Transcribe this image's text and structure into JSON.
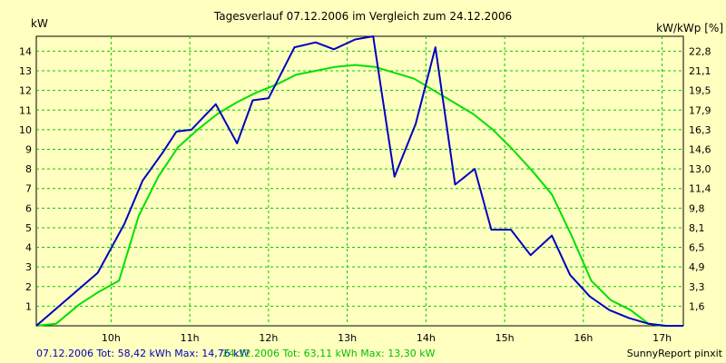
{
  "chart_data": {
    "type": "line",
    "title": "Tagesverlauf 07.12.2006 im Vergleich zum 24.12.2006",
    "left_axis_label": "kW",
    "right_axis_label": "kW/kWp [%]",
    "left_ylim": [
      0,
      14.76
    ],
    "left_ticks": [
      "1",
      "2",
      "3",
      "4",
      "5",
      "6",
      "7",
      "8",
      "9",
      "10",
      "11",
      "12",
      "13",
      "14"
    ],
    "right_ticks": [
      "1,6",
      "3,3",
      "4,9",
      "6,5",
      "8,1",
      "9,8",
      "11,4",
      "13,0",
      "14,6",
      "16,3",
      "17,9",
      "19,5",
      "21,1",
      "22,8"
    ],
    "xlim": [
      9.05,
      17.27
    ],
    "x_ticks": [
      "10h",
      "11h",
      "12h",
      "13h",
      "14h",
      "15h",
      "16h",
      "17h"
    ],
    "grid": true,
    "series": [
      {
        "name": "07.12.2006",
        "color": "#0000c0",
        "summary_label": "07.12.2006 Tot: 58,42 kWh Max: 14,76 kW",
        "x": [
          9.05,
          9.83,
          10.17,
          10.4,
          10.65,
          10.83,
          11.02,
          11.33,
          11.6,
          11.8,
          12.0,
          12.33,
          12.6,
          12.83,
          13.1,
          13.33,
          13.6,
          13.87,
          14.12,
          14.37,
          14.62,
          14.83,
          15.08,
          15.33,
          15.6,
          15.83,
          16.08,
          16.33,
          16.58,
          16.83,
          17.05,
          17.27
        ],
        "y": [
          0.0,
          2.7,
          5.2,
          7.4,
          8.8,
          9.9,
          10.0,
          11.3,
          9.3,
          11.5,
          11.6,
          14.2,
          14.45,
          14.1,
          14.6,
          14.76,
          7.6,
          10.3,
          14.2,
          7.2,
          8.0,
          4.9,
          4.9,
          3.6,
          4.6,
          2.6,
          1.5,
          0.8,
          0.4,
          0.1,
          0.0,
          0.0
        ]
      },
      {
        "name": "24.12.2006",
        "color": "#00e000",
        "summary_label": "24.12.2006 Tot: 63,11 kWh Max: 13,30 kW",
        "x": [
          9.05,
          9.3,
          9.6,
          9.83,
          10.1,
          10.35,
          10.6,
          10.85,
          11.1,
          11.35,
          11.6,
          11.85,
          12.1,
          12.35,
          12.6,
          12.85,
          13.1,
          13.35,
          13.6,
          13.85,
          14.1,
          14.35,
          14.6,
          14.85,
          15.1,
          15.35,
          15.6,
          15.85,
          16.1,
          16.35,
          16.6,
          16.83,
          17.0,
          17.27
        ],
        "y": [
          0.0,
          0.1,
          1.1,
          1.7,
          2.3,
          5.6,
          7.6,
          9.1,
          10.0,
          10.8,
          11.4,
          11.9,
          12.3,
          12.8,
          13.0,
          13.2,
          13.3,
          13.2,
          12.9,
          12.6,
          12.0,
          11.4,
          10.8,
          10.0,
          9.0,
          7.9,
          6.7,
          4.6,
          2.3,
          1.3,
          0.8,
          0.1,
          0.0,
          0.0
        ]
      }
    ],
    "credit": "SunnyReport pinxit"
  }
}
